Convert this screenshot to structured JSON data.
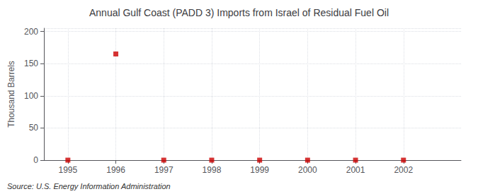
{
  "chart_data": {
    "type": "scatter",
    "title": "Annual Gulf Coast (PADD 3) Imports from Israel of Residual Fuel Oil",
    "ylabel": "Thousand Barrels",
    "x": [
      1995,
      1996,
      1997,
      1998,
      1999,
      2000,
      2001,
      2002
    ],
    "values": [
      0,
      165,
      0,
      0,
      0,
      0,
      0,
      0
    ],
    "color": "#cc0000",
    "marker": "square",
    "xlim": [
      1994.5,
      2003.2
    ],
    "xticks": [
      1995,
      1996,
      1997,
      1998,
      1999,
      2000,
      2001,
      2002
    ],
    "ylim": [
      0,
      205
    ],
    "yticks": [
      0,
      50,
      100,
      150,
      200
    ],
    "grid": true,
    "annotations": [
      "Source: U.S. Energy Information Administration"
    ]
  }
}
